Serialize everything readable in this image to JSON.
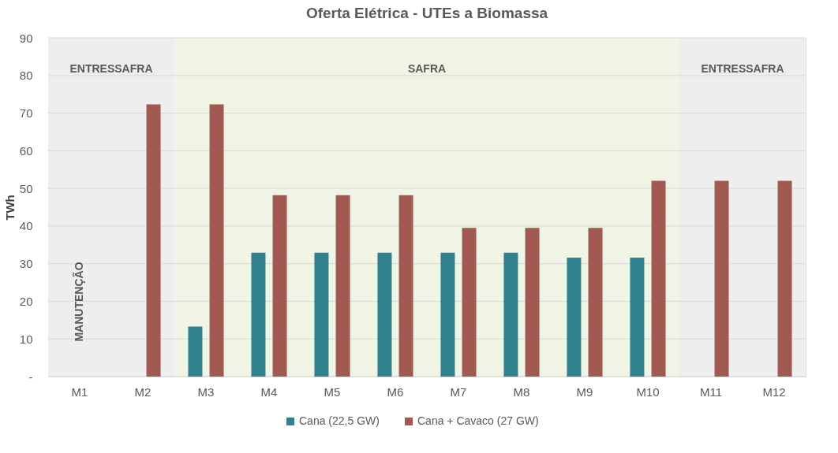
{
  "chart_data": {
    "type": "bar",
    "title": "Oferta Elétrica - UTEs a Biomassa",
    "ylabel": "TWh",
    "categories": [
      "M1",
      "M2",
      "M3",
      "M4",
      "M5",
      "M6",
      "M7",
      "M8",
      "M9",
      "M10",
      "M11",
      "M12"
    ],
    "series": [
      {
        "name": "Cana (22,5 GW)",
        "color": "#31828f",
        "values": [
          null,
          null,
          13.3,
          32.9,
          32.9,
          32.9,
          32.9,
          32.9,
          31.6,
          31.6,
          null,
          null
        ]
      },
      {
        "name": "Cana + Cavaco (27 GW)",
        "color": "#a05a52",
        "values": [
          null,
          72.3,
          72.3,
          48.2,
          48.2,
          48.2,
          39.5,
          39.5,
          39.5,
          52.0,
          52.0,
          52.0
        ]
      }
    ],
    "ylim": [
      0,
      90
    ],
    "yticks": [
      {
        "value": 0,
        "label": "-"
      },
      10,
      20,
      30,
      40,
      50,
      60,
      70,
      80,
      90
    ],
    "grid": "y",
    "legend": "bottom",
    "bands": [
      {
        "axis": "x",
        "from": "M1",
        "to": "M2",
        "label": "ENTRESSAFRA",
        "color": "#eeeeee"
      },
      {
        "axis": "x",
        "from": "M3",
        "to": "M10",
        "label": "SAFRA",
        "color": "#eff4e5"
      },
      {
        "axis": "x",
        "from": "M11",
        "to": "M12",
        "label": "ENTRESSAFRA",
        "color": "#eeeeee"
      }
    ],
    "annotations": [
      "MANUTENÇÃO"
    ]
  }
}
